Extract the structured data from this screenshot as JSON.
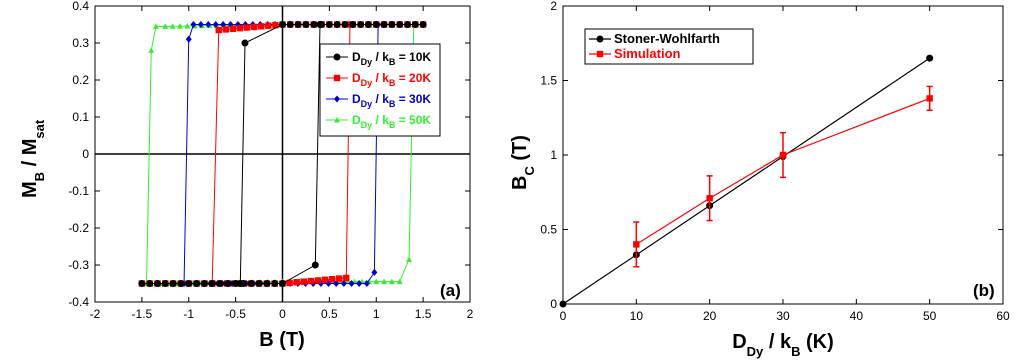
{
  "chart_data": [
    {
      "type": "line",
      "panel_label": "(a)",
      "xlim": [
        -2,
        2
      ],
      "ylim": [
        -0.4,
        0.4
      ],
      "xticks": [
        "-2",
        "-1.5",
        "-1",
        "-0.5",
        "0",
        "0.5",
        "1",
        "1.5",
        "2"
      ],
      "yticks": [
        "-0.4",
        "-0.3",
        "-0.2",
        "-0.1",
        "0",
        "0.1",
        "0.2",
        "0.3",
        "0.4"
      ],
      "xlabel": {
        "main": "B (T)"
      },
      "ylabel": {
        "pre": "M",
        "sub1": "B",
        "mid": " / M",
        "sub2": "sat"
      },
      "legend_position": "top-right",
      "series": [
        {
          "label_pre": "D",
          "label_sub": "Dy",
          "label_mid": " / k",
          "label_sub2": "B",
          "label_post": " = 10K",
          "color": "#000000",
          "marker": "circle",
          "upper_branch": {
            "x": [
              -0.45,
              -0.4,
              0.0,
              0.5,
              1.0,
              1.5
            ],
            "y": [
              -0.35,
              0.3,
              0.35,
              0.35,
              0.35,
              0.35
            ]
          },
          "lower_branch": {
            "x": [
              -1.5,
              -1.0,
              -0.5,
              0.0,
              0.35,
              0.4
            ],
            "y": [
              -0.35,
              -0.35,
              -0.35,
              -0.35,
              -0.3,
              0.35
            ]
          }
        },
        {
          "label_pre": "D",
          "label_sub": "Dy",
          "label_mid": " / k",
          "label_sub2": "B",
          "label_post": " = 20K",
          "color": "#ff0000",
          "marker": "square",
          "upper_branch": {
            "x": [
              -0.75,
              -0.68,
              0.0,
              0.5,
              1.0,
              1.5
            ],
            "y": [
              -0.35,
              0.335,
              0.35,
              0.35,
              0.35,
              0.35
            ]
          },
          "lower_branch": {
            "x": [
              -1.5,
              -1.0,
              -0.5,
              0.0,
              0.68,
              0.72
            ],
            "y": [
              -0.35,
              -0.35,
              -0.35,
              -0.35,
              -0.335,
              0.35
            ]
          }
        },
        {
          "label_pre": "D",
          "label_sub": "Dy",
          "label_mid": " / k",
          "label_sub2": "B",
          "label_post": " = 30K",
          "color": "#0000cc",
          "marker": "diamond",
          "upper_branch": {
            "x": [
              -1.05,
              -1.0,
              -0.95,
              0.0,
              0.5,
              1.0,
              1.5
            ],
            "y": [
              -0.35,
              0.31,
              0.35,
              0.35,
              0.35,
              0.35,
              0.35
            ]
          },
          "lower_branch": {
            "x": [
              -1.5,
              -1.0,
              0.0,
              0.9,
              0.98,
              1.02
            ],
            "y": [
              -0.35,
              -0.35,
              -0.35,
              -0.35,
              -0.32,
              0.35
            ]
          }
        },
        {
          "label_pre": "D",
          "label_sub": "Dy",
          "label_mid": " / k",
          "label_sub2": "B",
          "label_post": " = 50K",
          "color": "#33ee33",
          "marker": "triangle",
          "upper_branch": {
            "x": [
              -1.45,
              -1.4,
              -1.35,
              -1.25,
              0.0,
              0.5,
              1.0,
              1.5
            ],
            "y": [
              -0.35,
              0.28,
              0.345,
              0.345,
              0.35,
              0.35,
              0.35,
              0.35
            ]
          },
          "lower_branch": {
            "x": [
              -1.5,
              -1.2,
              0.0,
              1.0,
              1.25,
              1.35,
              1.4
            ],
            "y": [
              -0.35,
              -0.35,
              -0.345,
              -0.345,
              -0.345,
              -0.285,
              0.35
            ]
          }
        }
      ]
    },
    {
      "type": "line",
      "panel_label": "(b)",
      "xlim": [
        0,
        60
      ],
      "ylim": [
        0,
        2
      ],
      "xticks": [
        "0",
        "10",
        "20",
        "30",
        "40",
        "50",
        "60"
      ],
      "yticks": [
        "0",
        "0.5",
        "1",
        "1.5",
        "2"
      ],
      "xlabel": {
        "pre": "D",
        "sub1": "Dy",
        "mid": " / k",
        "sub2": "B",
        "post": " (K)"
      },
      "ylabel": {
        "pre": "B",
        "sub1": "C",
        "post": " (T)"
      },
      "legend_position": "top-left",
      "series": [
        {
          "name": "Stoner-Wohlfarth",
          "color": "#000000",
          "marker": "circle",
          "x": [
            0,
            10,
            20,
            30,
            50
          ],
          "y": [
            0,
            0.33,
            0.66,
            0.99,
            1.65
          ]
        },
        {
          "name": "Simulation",
          "color": "#ff0000",
          "marker": "square",
          "x": [
            10,
            20,
            30,
            50
          ],
          "y": [
            0.4,
            0.71,
            1.0,
            1.38
          ],
          "yerr": [
            0.15,
            0.15,
            0.15,
            0.08
          ]
        }
      ]
    }
  ]
}
